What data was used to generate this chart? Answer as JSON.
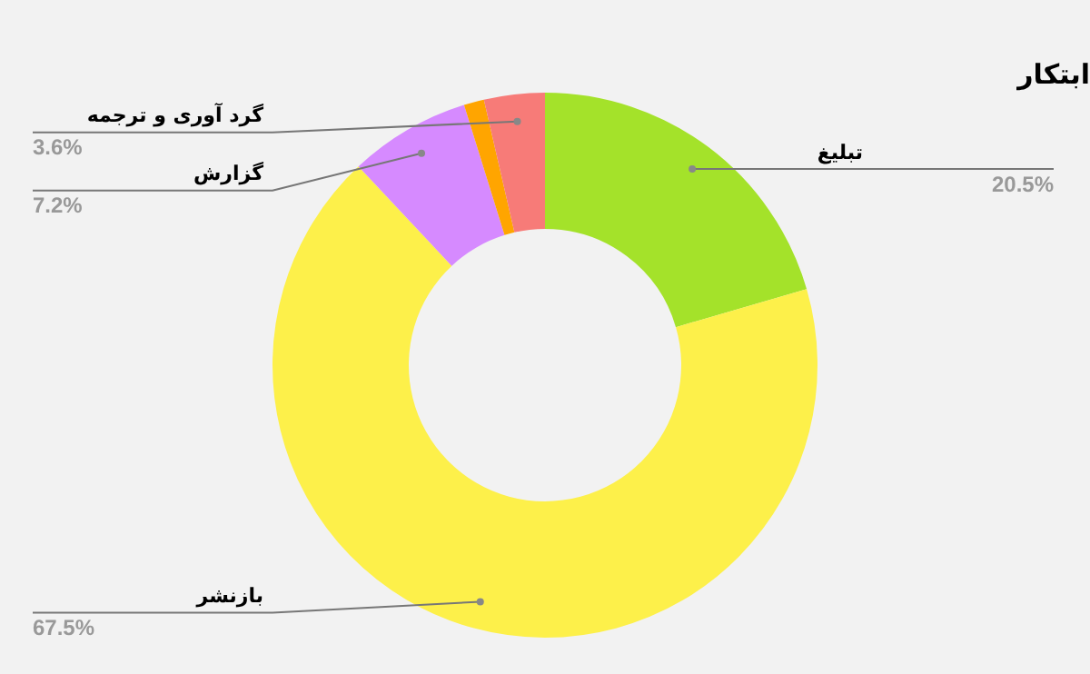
{
  "chart_data": {
    "type": "donut",
    "title": "ابتکار",
    "categories": [
      "تبلیغ",
      "بازنشر",
      "گزارش",
      null,
      "گرد آوری و ترجمه"
    ],
    "values": [
      20.5,
      67.5,
      7.2,
      1.2,
      3.6
    ],
    "colors": [
      "#a4e22a",
      "#fdf04a",
      "#d68aff",
      "#ffa500",
      "#f77b78"
    ],
    "value_labels": [
      "20.5%",
      "67.5%",
      "7.2%",
      null,
      "3.6%"
    ],
    "legend": false
  }
}
